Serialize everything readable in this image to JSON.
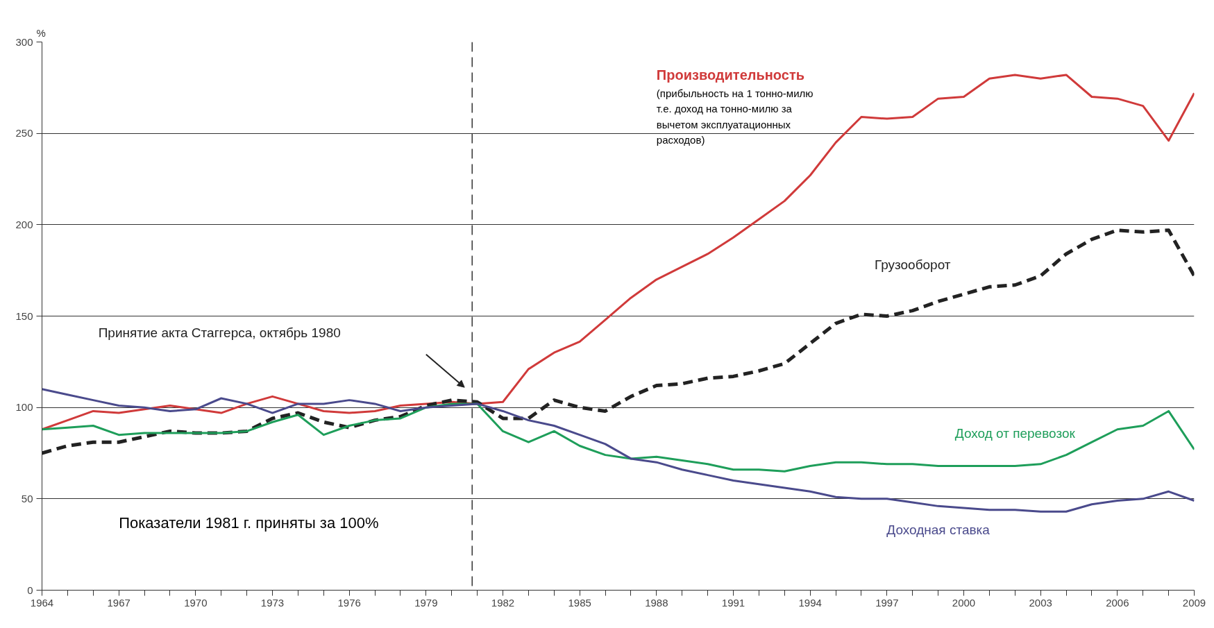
{
  "chart_data": {
    "type": "line",
    "ylabel": "%",
    "x": [
      1964,
      1965,
      1966,
      1967,
      1968,
      1969,
      1970,
      1971,
      1972,
      1973,
      1974,
      1975,
      1976,
      1977,
      1978,
      1979,
      1980,
      1981,
      1982,
      1983,
      1984,
      1985,
      1986,
      1987,
      1988,
      1989,
      1990,
      1991,
      1992,
      1993,
      1994,
      1995,
      1996,
      1997,
      1998,
      1999,
      2000,
      2001,
      2002,
      2003,
      2004,
      2005,
      2006,
      2007,
      2008,
      2009
    ],
    "series": [
      {
        "name": "Производительность",
        "color": "#d03a3a",
        "line_style": "solid",
        "values": [
          88,
          93,
          98,
          97,
          99,
          101,
          99,
          97,
          102,
          106,
          102,
          98,
          97,
          98,
          101,
          102,
          103,
          102,
          103,
          121,
          130,
          136,
          148,
          160,
          170,
          177,
          184,
          193,
          203,
          213,
          227,
          245,
          259,
          258,
          259,
          269,
          270,
          280,
          282,
          280,
          282,
          270,
          269,
          265,
          246,
          272
        ]
      },
      {
        "name": "Грузооборот",
        "color": "#222222",
        "line_style": "dashed",
        "values": [
          75,
          79,
          81,
          81,
          84,
          87,
          86,
          86,
          87,
          94,
          97,
          92,
          89,
          93,
          95,
          101,
          104,
          103,
          94,
          94,
          104,
          100,
          98,
          106,
          112,
          113,
          116,
          117,
          120,
          124,
          135,
          146,
          151,
          150,
          153,
          158,
          162,
          166,
          167,
          172,
          184,
          192,
          197,
          196,
          197,
          172
        ]
      },
      {
        "name": "Доход от перевозок",
        "color": "#1e9e5a",
        "line_style": "solid",
        "values": [
          88,
          89,
          90,
          85,
          86,
          86,
          86,
          86,
          87,
          92,
          96,
          85,
          90,
          93,
          94,
          100,
          102,
          102,
          87,
          81,
          87,
          79,
          74,
          72,
          73,
          71,
          69,
          66,
          66,
          65,
          68,
          70,
          70,
          69,
          69,
          68,
          68,
          68,
          68,
          69,
          74,
          81,
          88,
          90,
          98,
          77
        ]
      },
      {
        "name": "Доходная ставка",
        "color": "#4a4a8c",
        "line_style": "solid",
        "values": [
          110,
          107,
          104,
          101,
          100,
          98,
          99,
          105,
          102,
          97,
          102,
          102,
          104,
          102,
          98,
          100,
          101,
          102,
          98,
          93,
          90,
          85,
          80,
          72,
          70,
          66,
          63,
          60,
          58,
          56,
          54,
          51,
          50,
          50,
          48,
          46,
          45,
          44,
          44,
          43,
          43,
          47,
          49,
          50,
          54,
          49
        ]
      }
    ],
    "xlim": [
      1964,
      2009
    ],
    "ylim": [
      0,
      300
    ],
    "xticks": [
      1964,
      {
        "value": 1965,
        "label": null
      },
      {
        "value": 1966,
        "label": null
      },
      1967,
      {
        "value": 1968,
        "label": null
      },
      {
        "value": 1969,
        "label": null
      },
      1970,
      {
        "value": 1971,
        "label": null
      },
      {
        "value": 1972,
        "label": null
      },
      1973,
      {
        "value": 1974,
        "label": null
      },
      {
        "value": 1975,
        "label": null
      },
      1976,
      {
        "value": 1977,
        "label": null
      },
      {
        "value": 1978,
        "label": null
      },
      1979,
      {
        "value": 1980,
        "label": null
      },
      {
        "value": 1981,
        "label": null
      },
      1982,
      {
        "value": 1983,
        "label": null
      },
      {
        "value": 1984,
        "label": null
      },
      1985,
      {
        "value": 1986,
        "label": null
      },
      {
        "value": 1987,
        "label": null
      },
      1988,
      {
        "value": 1989,
        "label": null
      },
      {
        "value": 1990,
        "label": null
      },
      1991,
      {
        "value": 1992,
        "label": null
      },
      {
        "value": 1993,
        "label": null
      },
      1994,
      {
        "value": 1995,
        "label": null
      },
      {
        "value": 1996,
        "label": null
      },
      1997,
      {
        "value": 1998,
        "label": null
      },
      {
        "value": 1999,
        "label": null
      },
      2000,
      {
        "value": 2001,
        "label": null
      },
      {
        "value": 2002,
        "label": null
      },
      2003,
      {
        "value": 2004,
        "label": null
      },
      {
        "value": 2005,
        "label": null
      },
      2006,
      {
        "value": 2007,
        "label": null
      },
      {
        "value": 2008,
        "label": null
      },
      2009
    ],
    "yticks": [
      0,
      50,
      100,
      150,
      200,
      250,
      300
    ],
    "grid": "y",
    "ref_lines": [
      {
        "axis": "x",
        "value": 1980.8,
        "color": "#333333",
        "line_style": "dashed"
      }
    ],
    "annotations": [
      "(прибыльность на 1 тонно-милю\nт.е. доход на тонно-милю за\nвычетом эксплуатационных\nрасходов)",
      "Принятие акта Стаггерса, октябрь 1980",
      "Показатели 1981 г. приняты за 100%"
    ]
  }
}
